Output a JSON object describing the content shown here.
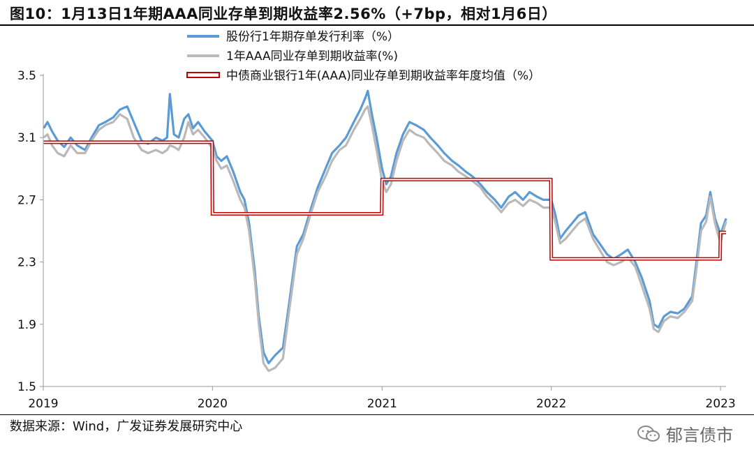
{
  "title": "图10：1月13日1年期AAA同业存单到期收益率2.56%（+7bp，相对1月6日）",
  "source": "数据来源：Wind，广发证券发展研究中心",
  "watermark": "郁言债市",
  "chart_data": {
    "type": "line",
    "ylim": [
      1.5,
      3.5
    ],
    "yticks": [
      "1.5",
      "1.9",
      "2.3",
      "2.7",
      "3.1",
      "3.5"
    ],
    "xlim": [
      "2019-01-01",
      "2023-01-13"
    ],
    "xticks": [
      "2019",
      "2020",
      "2021",
      "2022",
      "2023"
    ],
    "legend_position": "top-center",
    "series": [
      {
        "name": "股份行1年期存单发行利率（%）",
        "color": "#5b9bd5",
        "style": "line",
        "points": [
          [
            "2019-01-02",
            3.16
          ],
          [
            "2019-01-10",
            3.2
          ],
          [
            "2019-01-20",
            3.14
          ],
          [
            "2019-02-01",
            3.08
          ],
          [
            "2019-02-15",
            3.04
          ],
          [
            "2019-03-01",
            3.1
          ],
          [
            "2019-03-15",
            3.05
          ],
          [
            "2019-04-01",
            3.02
          ],
          [
            "2019-04-15",
            3.1
          ],
          [
            "2019-05-01",
            3.18
          ],
          [
            "2019-05-15",
            3.2
          ],
          [
            "2019-06-01",
            3.23
          ],
          [
            "2019-06-15",
            3.28
          ],
          [
            "2019-07-01",
            3.3
          ],
          [
            "2019-07-15",
            3.2
          ],
          [
            "2019-08-01",
            3.08
          ],
          [
            "2019-08-15",
            3.06
          ],
          [
            "2019-09-01",
            3.1
          ],
          [
            "2019-09-15",
            3.08
          ],
          [
            "2019-09-25",
            3.1
          ],
          [
            "2019-10-01",
            3.38
          ],
          [
            "2019-10-10",
            3.12
          ],
          [
            "2019-10-20",
            3.1
          ],
          [
            "2019-11-01",
            3.22
          ],
          [
            "2019-11-10",
            3.25
          ],
          [
            "2019-11-20",
            3.16
          ],
          [
            "2019-12-01",
            3.2
          ],
          [
            "2019-12-15",
            3.14
          ],
          [
            "2020-01-01",
            3.08
          ],
          [
            "2020-01-10",
            2.98
          ],
          [
            "2020-01-20",
            2.95
          ],
          [
            "2020-02-01",
            2.98
          ],
          [
            "2020-02-15",
            2.88
          ],
          [
            "2020-03-01",
            2.75
          ],
          [
            "2020-03-10",
            2.7
          ],
          [
            "2020-03-20",
            2.55
          ],
          [
            "2020-04-01",
            2.25
          ],
          [
            "2020-04-10",
            1.95
          ],
          [
            "2020-04-20",
            1.72
          ],
          [
            "2020-05-01",
            1.65
          ],
          [
            "2020-05-15",
            1.7
          ],
          [
            "2020-06-01",
            1.75
          ],
          [
            "2020-06-15",
            2.05
          ],
          [
            "2020-07-01",
            2.4
          ],
          [
            "2020-07-15",
            2.48
          ],
          [
            "2020-08-01",
            2.65
          ],
          [
            "2020-08-15",
            2.78
          ],
          [
            "2020-09-01",
            2.9
          ],
          [
            "2020-09-15",
            3.0
          ],
          [
            "2020-10-01",
            3.05
          ],
          [
            "2020-10-15",
            3.1
          ],
          [
            "2020-11-01",
            3.2
          ],
          [
            "2020-11-15",
            3.28
          ],
          [
            "2020-11-25",
            3.35
          ],
          [
            "2020-12-01",
            3.4
          ],
          [
            "2020-12-10",
            3.25
          ],
          [
            "2020-12-20",
            3.1
          ],
          [
            "2021-01-01",
            2.9
          ],
          [
            "2021-01-10",
            2.8
          ],
          [
            "2021-01-20",
            2.85
          ],
          [
            "2021-02-01",
            3.0
          ],
          [
            "2021-02-15",
            3.12
          ],
          [
            "2021-03-01",
            3.2
          ],
          [
            "2021-03-15",
            3.18
          ],
          [
            "2021-04-01",
            3.15
          ],
          [
            "2021-04-15",
            3.1
          ],
          [
            "2021-05-01",
            3.05
          ],
          [
            "2021-05-15",
            3.0
          ],
          [
            "2021-06-01",
            2.95
          ],
          [
            "2021-06-15",
            2.92
          ],
          [
            "2021-07-01",
            2.88
          ],
          [
            "2021-07-15",
            2.85
          ],
          [
            "2021-08-01",
            2.8
          ],
          [
            "2021-08-15",
            2.75
          ],
          [
            "2021-09-01",
            2.7
          ],
          [
            "2021-09-15",
            2.65
          ],
          [
            "2021-10-01",
            2.72
          ],
          [
            "2021-10-15",
            2.75
          ],
          [
            "2021-11-01",
            2.7
          ],
          [
            "2021-11-15",
            2.75
          ],
          [
            "2021-12-01",
            2.72
          ],
          [
            "2021-12-15",
            2.7
          ],
          [
            "2022-01-01",
            2.7
          ],
          [
            "2022-01-10",
            2.6
          ],
          [
            "2022-01-20",
            2.45
          ],
          [
            "2022-02-01",
            2.5
          ],
          [
            "2022-02-15",
            2.55
          ],
          [
            "2022-03-01",
            2.6
          ],
          [
            "2022-03-15",
            2.62
          ],
          [
            "2022-04-01",
            2.48
          ],
          [
            "2022-04-15",
            2.42
          ],
          [
            "2022-05-01",
            2.35
          ],
          [
            "2022-05-15",
            2.32
          ],
          [
            "2022-06-01",
            2.35
          ],
          [
            "2022-06-15",
            2.38
          ],
          [
            "2022-07-01",
            2.3
          ],
          [
            "2022-07-15",
            2.2
          ],
          [
            "2022-08-01",
            2.05
          ],
          [
            "2022-08-10",
            1.9
          ],
          [
            "2022-08-20",
            1.88
          ],
          [
            "2022-09-01",
            1.95
          ],
          [
            "2022-09-15",
            1.98
          ],
          [
            "2022-10-01",
            1.97
          ],
          [
            "2022-10-15",
            2.0
          ],
          [
            "2022-11-01",
            2.08
          ],
          [
            "2022-11-10",
            2.3
          ],
          [
            "2022-11-20",
            2.55
          ],
          [
            "2022-12-01",
            2.6
          ],
          [
            "2022-12-10",
            2.75
          ],
          [
            "2022-12-20",
            2.58
          ],
          [
            "2023-01-01",
            2.48
          ],
          [
            "2023-01-06",
            2.52
          ],
          [
            "2023-01-13",
            2.58
          ]
        ]
      },
      {
        "name": "1年AAA同业存单到期收益率(%)",
        "color": "#b9b9b9",
        "style": "line",
        "points": [
          [
            "2019-01-02",
            3.1
          ],
          [
            "2019-01-10",
            3.12
          ],
          [
            "2019-01-20",
            3.05
          ],
          [
            "2019-02-01",
            3.0
          ],
          [
            "2019-02-15",
            2.98
          ],
          [
            "2019-03-01",
            3.05
          ],
          [
            "2019-03-15",
            3.0
          ],
          [
            "2019-04-01",
            3.0
          ],
          [
            "2019-04-15",
            3.08
          ],
          [
            "2019-05-01",
            3.15
          ],
          [
            "2019-05-15",
            3.18
          ],
          [
            "2019-06-01",
            3.2
          ],
          [
            "2019-06-15",
            3.25
          ],
          [
            "2019-07-01",
            3.22
          ],
          [
            "2019-07-15",
            3.1
          ],
          [
            "2019-08-01",
            3.02
          ],
          [
            "2019-08-15",
            3.0
          ],
          [
            "2019-09-01",
            3.02
          ],
          [
            "2019-09-15",
            3.0
          ],
          [
            "2019-09-25",
            3.02
          ],
          [
            "2019-10-01",
            3.05
          ],
          [
            "2019-10-10",
            3.04
          ],
          [
            "2019-10-20",
            3.02
          ],
          [
            "2019-11-01",
            3.1
          ],
          [
            "2019-11-10",
            3.2
          ],
          [
            "2019-11-20",
            3.12
          ],
          [
            "2019-12-01",
            3.15
          ],
          [
            "2019-12-15",
            3.1
          ],
          [
            "2020-01-01",
            3.03
          ],
          [
            "2020-01-10",
            2.95
          ],
          [
            "2020-01-20",
            2.9
          ],
          [
            "2020-02-01",
            2.92
          ],
          [
            "2020-02-15",
            2.82
          ],
          [
            "2020-03-01",
            2.7
          ],
          [
            "2020-03-10",
            2.65
          ],
          [
            "2020-03-20",
            2.5
          ],
          [
            "2020-04-01",
            2.2
          ],
          [
            "2020-04-10",
            1.9
          ],
          [
            "2020-04-20",
            1.65
          ],
          [
            "2020-05-01",
            1.6
          ],
          [
            "2020-05-15",
            1.62
          ],
          [
            "2020-06-01",
            1.68
          ],
          [
            "2020-06-15",
            2.0
          ],
          [
            "2020-07-01",
            2.35
          ],
          [
            "2020-07-15",
            2.45
          ],
          [
            "2020-08-01",
            2.62
          ],
          [
            "2020-08-15",
            2.75
          ],
          [
            "2020-09-01",
            2.85
          ],
          [
            "2020-09-15",
            2.95
          ],
          [
            "2020-10-01",
            3.02
          ],
          [
            "2020-10-15",
            3.05
          ],
          [
            "2020-11-01",
            3.15
          ],
          [
            "2020-11-15",
            3.22
          ],
          [
            "2020-11-25",
            3.28
          ],
          [
            "2020-12-01",
            3.3
          ],
          [
            "2020-12-10",
            3.18
          ],
          [
            "2020-12-20",
            3.02
          ],
          [
            "2021-01-01",
            2.82
          ],
          [
            "2021-01-10",
            2.75
          ],
          [
            "2021-01-20",
            2.8
          ],
          [
            "2021-02-01",
            2.95
          ],
          [
            "2021-02-15",
            3.08
          ],
          [
            "2021-03-01",
            3.15
          ],
          [
            "2021-03-15",
            3.12
          ],
          [
            "2021-04-01",
            3.1
          ],
          [
            "2021-04-15",
            3.05
          ],
          [
            "2021-05-01",
            3.0
          ],
          [
            "2021-05-15",
            2.95
          ],
          [
            "2021-06-01",
            2.92
          ],
          [
            "2021-06-15",
            2.88
          ],
          [
            "2021-07-01",
            2.85
          ],
          [
            "2021-07-15",
            2.82
          ],
          [
            "2021-08-01",
            2.78
          ],
          [
            "2021-08-15",
            2.72
          ],
          [
            "2021-09-01",
            2.67
          ],
          [
            "2021-09-15",
            2.62
          ],
          [
            "2021-10-01",
            2.68
          ],
          [
            "2021-10-15",
            2.7
          ],
          [
            "2021-11-01",
            2.66
          ],
          [
            "2021-11-15",
            2.7
          ],
          [
            "2021-12-01",
            2.68
          ],
          [
            "2021-12-15",
            2.65
          ],
          [
            "2022-01-01",
            2.65
          ],
          [
            "2022-01-10",
            2.55
          ],
          [
            "2022-01-20",
            2.42
          ],
          [
            "2022-02-01",
            2.45
          ],
          [
            "2022-02-15",
            2.5
          ],
          [
            "2022-03-01",
            2.55
          ],
          [
            "2022-03-15",
            2.58
          ],
          [
            "2022-04-01",
            2.45
          ],
          [
            "2022-04-15",
            2.38
          ],
          [
            "2022-05-01",
            2.3
          ],
          [
            "2022-05-15",
            2.28
          ],
          [
            "2022-06-01",
            2.3
          ],
          [
            "2022-06-15",
            2.33
          ],
          [
            "2022-07-01",
            2.27
          ],
          [
            "2022-07-15",
            2.15
          ],
          [
            "2022-08-01",
            2.0
          ],
          [
            "2022-08-10",
            1.87
          ],
          [
            "2022-08-20",
            1.85
          ],
          [
            "2022-09-01",
            1.92
          ],
          [
            "2022-09-15",
            1.95
          ],
          [
            "2022-10-01",
            1.94
          ],
          [
            "2022-10-15",
            1.98
          ],
          [
            "2022-11-01",
            2.05
          ],
          [
            "2022-11-10",
            2.25
          ],
          [
            "2022-11-20",
            2.5
          ],
          [
            "2022-12-01",
            2.56
          ],
          [
            "2022-12-10",
            2.72
          ],
          [
            "2022-12-20",
            2.55
          ],
          [
            "2023-01-01",
            2.42
          ],
          [
            "2023-01-06",
            2.49
          ],
          [
            "2023-01-13",
            2.56
          ]
        ]
      },
      {
        "name": "中债商业银行1年(AAA)同业存单到期收益率年度均值（%）",
        "color": "#c00000",
        "style": "step-double",
        "points": [
          [
            "2019-01-02",
            3.07
          ],
          [
            "2019-12-31",
            3.07
          ],
          [
            "2020-01-01",
            2.61
          ],
          [
            "2020-12-31",
            2.61
          ],
          [
            "2021-01-01",
            2.83
          ],
          [
            "2021-12-31",
            2.83
          ],
          [
            "2022-01-01",
            2.32
          ],
          [
            "2022-12-31",
            2.32
          ],
          [
            "2023-01-01",
            2.49
          ],
          [
            "2023-01-13",
            2.49
          ]
        ]
      }
    ]
  }
}
